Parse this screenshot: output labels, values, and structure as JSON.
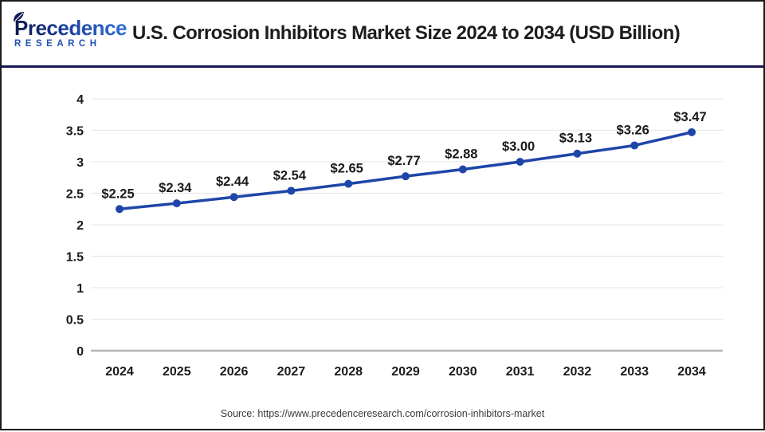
{
  "header": {
    "logo": {
      "line1": "Precedence",
      "line2": "RESEARCH"
    },
    "title": "U.S. Corrosion Inhibitors Market Size 2024 to 2034 (USD Billion)"
  },
  "chart_data": {
    "type": "line",
    "title": "U.S. Corrosion Inhibitors Market Size 2024 to 2034 (USD Billion)",
    "categories": [
      "2024",
      "2025",
      "2026",
      "2027",
      "2028",
      "2029",
      "2030",
      "2031",
      "2032",
      "2033",
      "2034"
    ],
    "values": [
      2.25,
      2.34,
      2.44,
      2.54,
      2.65,
      2.77,
      2.88,
      3.0,
      3.13,
      3.26,
      3.47
    ],
    "point_labels": [
      "$2.25",
      "$2.34",
      "$2.44",
      "$2.54",
      "$2.65",
      "$2.77",
      "$2.88",
      "$3.00",
      "$3.13",
      "$3.26",
      "$3.47"
    ],
    "xlabel": "",
    "ylabel": "",
    "ylim": [
      0,
      4
    ],
    "yticks": [
      "0",
      "0.5",
      "1",
      "1.5",
      "2",
      "2.5",
      "3",
      "3.5",
      "4"
    ],
    "grid": true,
    "legend": "none",
    "line_color": "#1e46a8",
    "marker_color": "#1e46a8"
  },
  "footer": {
    "source": "Source: https://www.precedenceresearch.com/corrosion-inhibitors-market"
  },
  "colors": {
    "gridline": "#e9e9e9",
    "axis_baseline": "#b3b3b3",
    "divider": "#151551",
    "page_border": "#1b1b1b",
    "title_text": "#1d1d1d",
    "label_text": "#1a1a1a",
    "source_text": "#3a3a3a",
    "logo_navy": "#10194f",
    "logo_blue": "#2f6fd6"
  }
}
